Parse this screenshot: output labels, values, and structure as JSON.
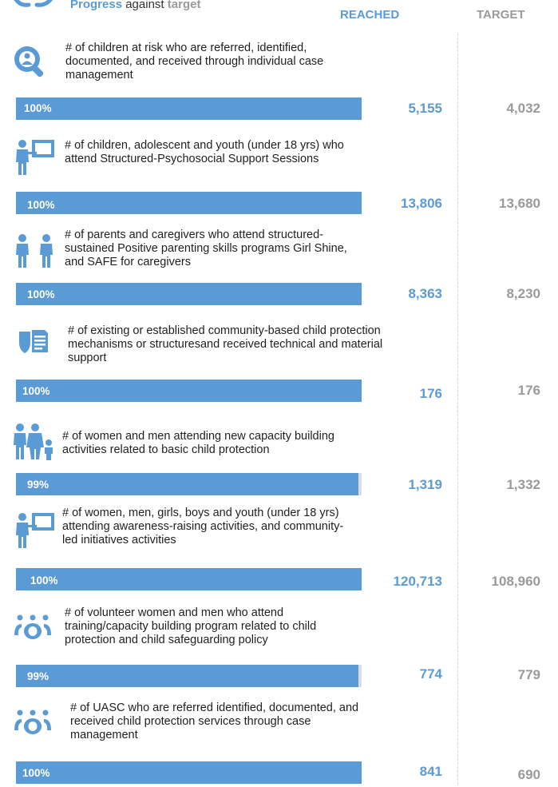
{
  "header": {
    "legend_reached": "Progress",
    "legend_mid": " against ",
    "legend_target": "target",
    "col_reached": "REACHED",
    "col_target": "TARGET"
  },
  "colors": {
    "reached": "#5b9bd5",
    "target": "#9a9a9a",
    "bar_track": "#dcdcdc",
    "icon": "#5b9bd5"
  },
  "chart_data": {
    "type": "bar",
    "orientation": "horizontal",
    "categories": [
      "# of children at risk who are referred, identified, documented, and received through individual case management",
      "# of children, adolescent and youth (under 18 yrs) who attend Structured-Psychosocial Support Sessions",
      "# of parents and caregivers who attend structured-sustained Positive parenting skills programs Girl Shine, and SAFE for caregivers",
      "# of existing or established community-based child protection mechanisms or structuresand received technical and material support",
      "# of women and men attending new capacity building activities related to basic child protection",
      "# of women, men, girls, boys and youth (under 18 yrs) attending awareness-raising activities, and community-led initiatives activities",
      "# of volunteer women and men who attend training/capacity building program related to child protection and child safeguarding policy",
      "# of UASC who are referred identified, documented, and received child protection services through case management"
    ],
    "series": [
      {
        "name": "Progress",
        "values": [
          100,
          100,
          100,
          100,
          99,
          100,
          99,
          100
        ],
        "labels": [
          "100%",
          "100%",
          "100%",
          "100%",
          "99%",
          "100%",
          "99%",
          "100%"
        ]
      },
      {
        "name": "REACHED",
        "values": [
          5155,
          13806,
          8363,
          176,
          1319,
          120713,
          774,
          841
        ],
        "labels": [
          "5,155",
          "13,806",
          "8,363",
          "176",
          "1,319",
          "120,713",
          "774",
          "841"
        ]
      },
      {
        "name": "TARGET",
        "values": [
          4032,
          13680,
          8230,
          176,
          1332,
          108960,
          779,
          690
        ],
        "labels": [
          "4,032",
          "13,680",
          "8,230",
          "176",
          "1,332",
          "108,960",
          "779",
          "690"
        ]
      }
    ],
    "xlim": [
      0,
      100
    ]
  },
  "indicators": [
    {
      "icon": "magnifier-person-icon",
      "text_lines": [
        "# of children at risk who are referred, identified,",
        "documented, and received through individual case",
        "management"
      ],
      "pct": "100%",
      "reached": "5,155",
      "target": "4,032"
    },
    {
      "icon": "teacher-board-icon",
      "text_lines": [
        "# of children, adolescent and youth (under 18 yrs) who",
        "attend Structured-Psychosocial Support Sessions"
      ],
      "pct": "100%",
      "reached": "13,806",
      "target": "13,680"
    },
    {
      "icon": "two-persons-icon",
      "text_lines": [
        "# of parents and caregivers who attend structured-",
        "sustained Positive parenting skills programs Girl Shine,",
        "and SAFE for caregivers"
      ],
      "pct": "100%",
      "reached": "8,363",
      "target": "8,230"
    },
    {
      "icon": "shield-document-icon",
      "text_lines": [
        "# of existing or established community-based child protection",
        "mechanisms or structuresand received technical and material",
        "support"
      ],
      "pct": "100%",
      "reached": "176",
      "target": "176"
    },
    {
      "icon": "family-icon",
      "text_lines": [
        "# of women and men attending new capacity building",
        "activities related to basic child protection"
      ],
      "pct": "99%",
      "reached": "1,319",
      "target": "1,332"
    },
    {
      "icon": "teacher-board-icon",
      "text_lines": [
        "# of women, men, girls, boys and youth (under 18 yrs)",
        "attending awareness-raising activities, and community-",
        "led initiatives activities"
      ],
      "pct": "100%",
      "reached": "120,713",
      "target": "108,960"
    },
    {
      "icon": "group-icon",
      "text_lines": [
        "# of volunteer women and men who attend",
        "training/capacity building program related to child",
        "protection and child safeguarding policy"
      ],
      "pct": "99%",
      "reached": "774",
      "target": "779"
    },
    {
      "icon": "group-icon",
      "text_lines": [
        "# of UASC who are referred identified, documented, and",
        "received child protection services through case",
        "management"
      ],
      "pct": "100%",
      "reached": "841",
      "target": "690"
    }
  ]
}
